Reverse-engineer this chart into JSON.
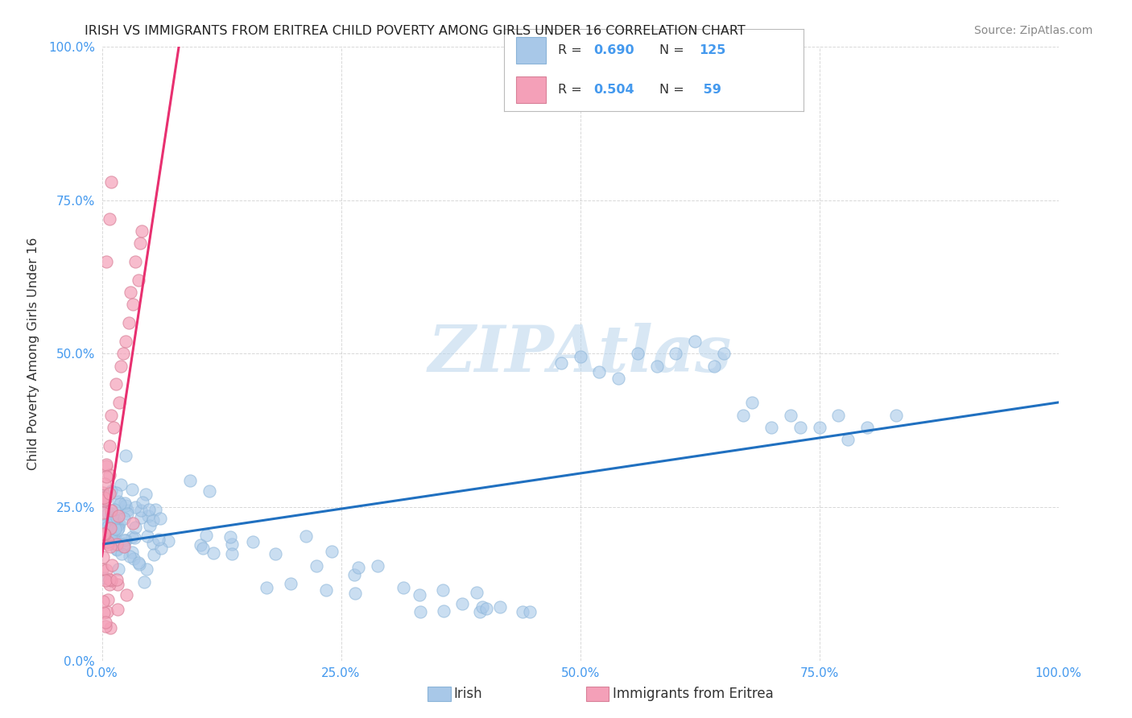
{
  "title": "IRISH VS IMMIGRANTS FROM ERITREA CHILD POVERTY AMONG GIRLS UNDER 16 CORRELATION CHART",
  "source": "Source: ZipAtlas.com",
  "ylabel": "Child Poverty Among Girls Under 16",
  "xlim": [
    0,
    1
  ],
  "ylim": [
    0,
    1
  ],
  "xtick_labels": [
    "0.0%",
    "25.0%",
    "50.0%",
    "75.0%",
    "100.0%"
  ],
  "ytick_labels": [
    "0.0%",
    "25.0%",
    "50.0%",
    "75.0%",
    "100.0%"
  ],
  "irish_color": "#a8c8e8",
  "eritrea_color": "#f4a0b8",
  "irish_line_color": "#2070c0",
  "eritrea_line_color": "#e83070",
  "irish_R": 0.69,
  "irish_N": 125,
  "eritrea_R": 0.504,
  "eritrea_N": 59,
  "watermark": "ZIPAtlas",
  "background_color": "#ffffff",
  "grid_color": "#c8c8c8"
}
